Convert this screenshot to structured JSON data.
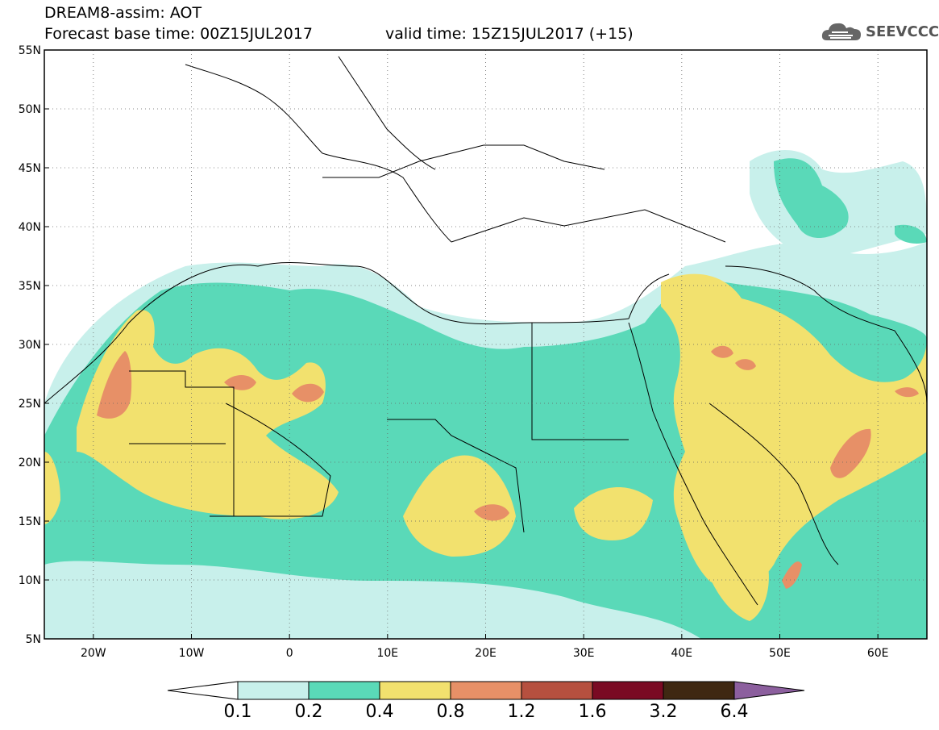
{
  "header": {
    "title": "DREAM8-assim: AOT",
    "base_time": "Forecast base time: 00Z15JUL2017",
    "valid_time": "valid time: 15Z15JUL2017 (+15)"
  },
  "logo": {
    "text": "SEEVCCC",
    "icon": "cloud-icon"
  },
  "map": {
    "lat_ticks": [
      "55N",
      "50N",
      "45N",
      "40N",
      "35N",
      "30N",
      "25N",
      "20N",
      "15N",
      "10N",
      "5N"
    ],
    "lon_ticks": [
      "20W",
      "10W",
      "0",
      "10E",
      "20E",
      "30E",
      "40E",
      "50E",
      "60E"
    ],
    "lat_range": [
      5,
      55
    ],
    "lon_range": [
      -25,
      65
    ],
    "grid": "dotted"
  },
  "colorbar": {
    "levels": [
      "0.1",
      "0.2",
      "0.4",
      "0.8",
      "1.2",
      "1.6",
      "3.2",
      "6.4"
    ],
    "colors": [
      "#c8f0eb",
      "#5ad9b8",
      "#f2e16e",
      "#e79067",
      "#b6503f",
      "#7a0a23",
      "#3f2812"
    ],
    "over_color": "#8c5f9e",
    "under_color": "#ffffff"
  },
  "palette": {
    "c1": "#c8f0eb",
    "c2": "#5ad9b8",
    "c3": "#f2e16e",
    "c4": "#e79067",
    "c5": "#b6503f"
  }
}
